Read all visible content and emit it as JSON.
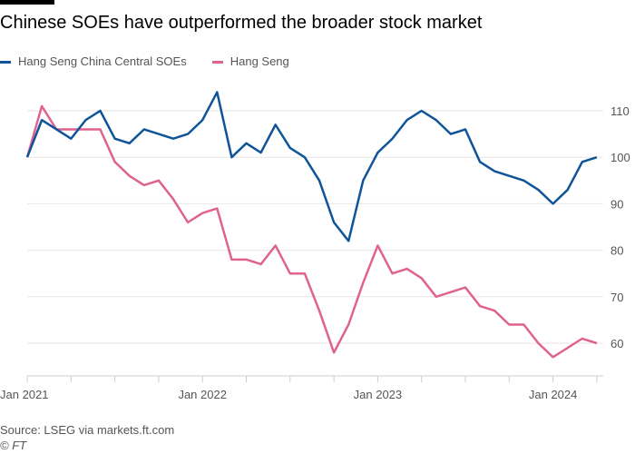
{
  "title": "Chinese SOEs have outperformed the broader stock market",
  "source": "Source: LSEG via markets.ft.com",
  "copyright": "© FT",
  "chart_data": {
    "type": "line",
    "title": "Chinese SOEs have outperformed the broader stock market",
    "x": [
      "2021-01",
      "2021-02",
      "2021-03",
      "2021-04",
      "2021-05",
      "2021-06",
      "2021-07",
      "2021-08",
      "2021-09",
      "2021-10",
      "2021-11",
      "2021-12",
      "2022-01",
      "2022-02",
      "2022-03",
      "2022-04",
      "2022-05",
      "2022-06",
      "2022-07",
      "2022-08",
      "2022-09",
      "2022-10",
      "2022-11",
      "2022-12",
      "2023-01",
      "2023-02",
      "2023-03",
      "2023-04",
      "2023-05",
      "2023-06",
      "2023-07",
      "2023-08",
      "2023-09",
      "2023-10",
      "2023-11",
      "2023-12",
      "2024-01",
      "2024-02",
      "2024-03",
      "2024-04"
    ],
    "series": [
      {
        "name": "Hang Seng China Central SOEs",
        "color": "#0f5499",
        "values": [
          100,
          108,
          106,
          104,
          108,
          110,
          104,
          103,
          106,
          105,
          104,
          105,
          108,
          114,
          100,
          103,
          101,
          107,
          102,
          100,
          95,
          86,
          82,
          95,
          101,
          104,
          108,
          110,
          108,
          105,
          106,
          99,
          97,
          96,
          95,
          93,
          90,
          93,
          99,
          100
        ]
      },
      {
        "name": "Hang Seng",
        "color": "#e0628f",
        "values": [
          100,
          111,
          106,
          106,
          106,
          106,
          99,
          96,
          94,
          95,
          91,
          86,
          88,
          89,
          78,
          78,
          77,
          81,
          75,
          75,
          67,
          58,
          64,
          73,
          81,
          75,
          76,
          74,
          70,
          71,
          72,
          68,
          67,
          64,
          64,
          60,
          57,
          59,
          61,
          60
        ]
      }
    ],
    "x_ticks": [
      "Jan 2021",
      "Jan 2022",
      "Jan 2023",
      "Jan 2024"
    ],
    "y_ticks": [
      60,
      70,
      80,
      90,
      100,
      110
    ],
    "ylim": [
      53,
      118
    ],
    "y_axis_side": "right",
    "grid": "horizontal",
    "legend_placement": "top-left"
  }
}
